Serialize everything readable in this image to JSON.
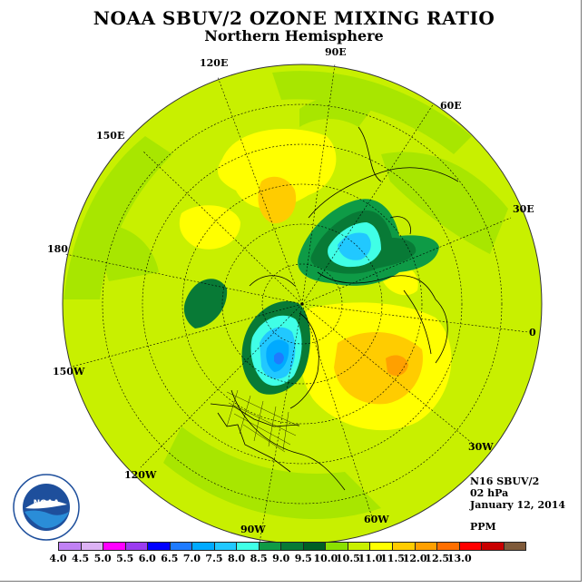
{
  "title": "NOAA SBUV/2 OZONE MIXING RATIO",
  "subtitle": "Northern Hemisphere",
  "longitude_labels": {
    "e90": "90E",
    "e120": "120E",
    "e60": "60E",
    "e150": "150E",
    "e30": "30E",
    "lon180": "180",
    "lon0": "0",
    "w150": "150W",
    "w30": "30W",
    "w120": "120W",
    "w60": "60W",
    "w90": "90W"
  },
  "info": {
    "satellite": "N16 SBUV/2",
    "pressure": "02 hPa",
    "date": "January 12, 2014",
    "units": "PPM"
  },
  "logo_text": "NOAA",
  "colorbar": {
    "colors": [
      "#c081f4",
      "#dcb2f4",
      "#ff00ff",
      "#9b3cf0",
      "#0000ff",
      "#1e7bff",
      "#00aaff",
      "#21c8ff",
      "#40ffe6",
      "#0e9b46",
      "#087a36",
      "#005f25",
      "#8ae000",
      "#c8f000",
      "#ffff00",
      "#ffcc00",
      "#ffa000",
      "#ff6f00",
      "#ff0000",
      "#c80000",
      "#7f5a3a"
    ],
    "labels": [
      "4.0",
      "4.5",
      "5.0",
      "5.5",
      "6.0",
      "6.5",
      "7.0",
      "7.5",
      "8.0",
      "8.5",
      "9.0",
      "9.5",
      "10.0",
      "10.5",
      "11.0",
      "11.5",
      "12.0",
      "12.5",
      "13.0"
    ]
  }
}
